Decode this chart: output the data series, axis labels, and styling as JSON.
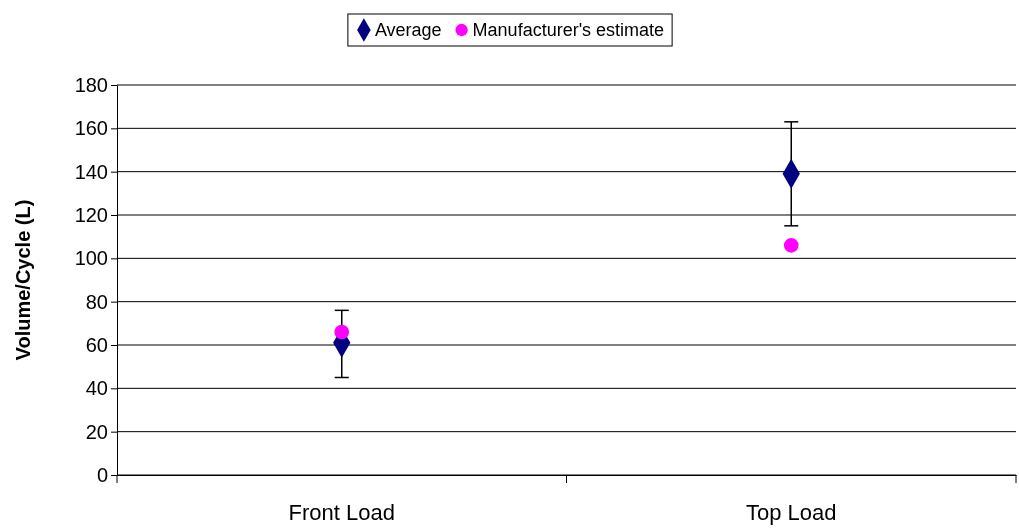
{
  "chart_data": {
    "type": "scatter",
    "ylabel": "Volume/Cycle (L)",
    "categories": [
      "Front Load",
      "Top Load"
    ],
    "series": [
      {
        "name": "Average",
        "color": "#000080",
        "marker": "diamond",
        "values": [
          61,
          139
        ],
        "errors": [
          [
            45,
            76
          ],
          [
            115,
            163
          ]
        ]
      },
      {
        "name": "Manufacturer's estimate",
        "color": "#ff00ff",
        "marker": "circle",
        "values": [
          66,
          106
        ]
      }
    ],
    "ylim": [
      0,
      180
    ],
    "yticks": [
      0,
      20,
      40,
      60,
      80,
      100,
      120,
      140,
      160,
      180
    ],
    "grid": "y",
    "legend": "top"
  }
}
